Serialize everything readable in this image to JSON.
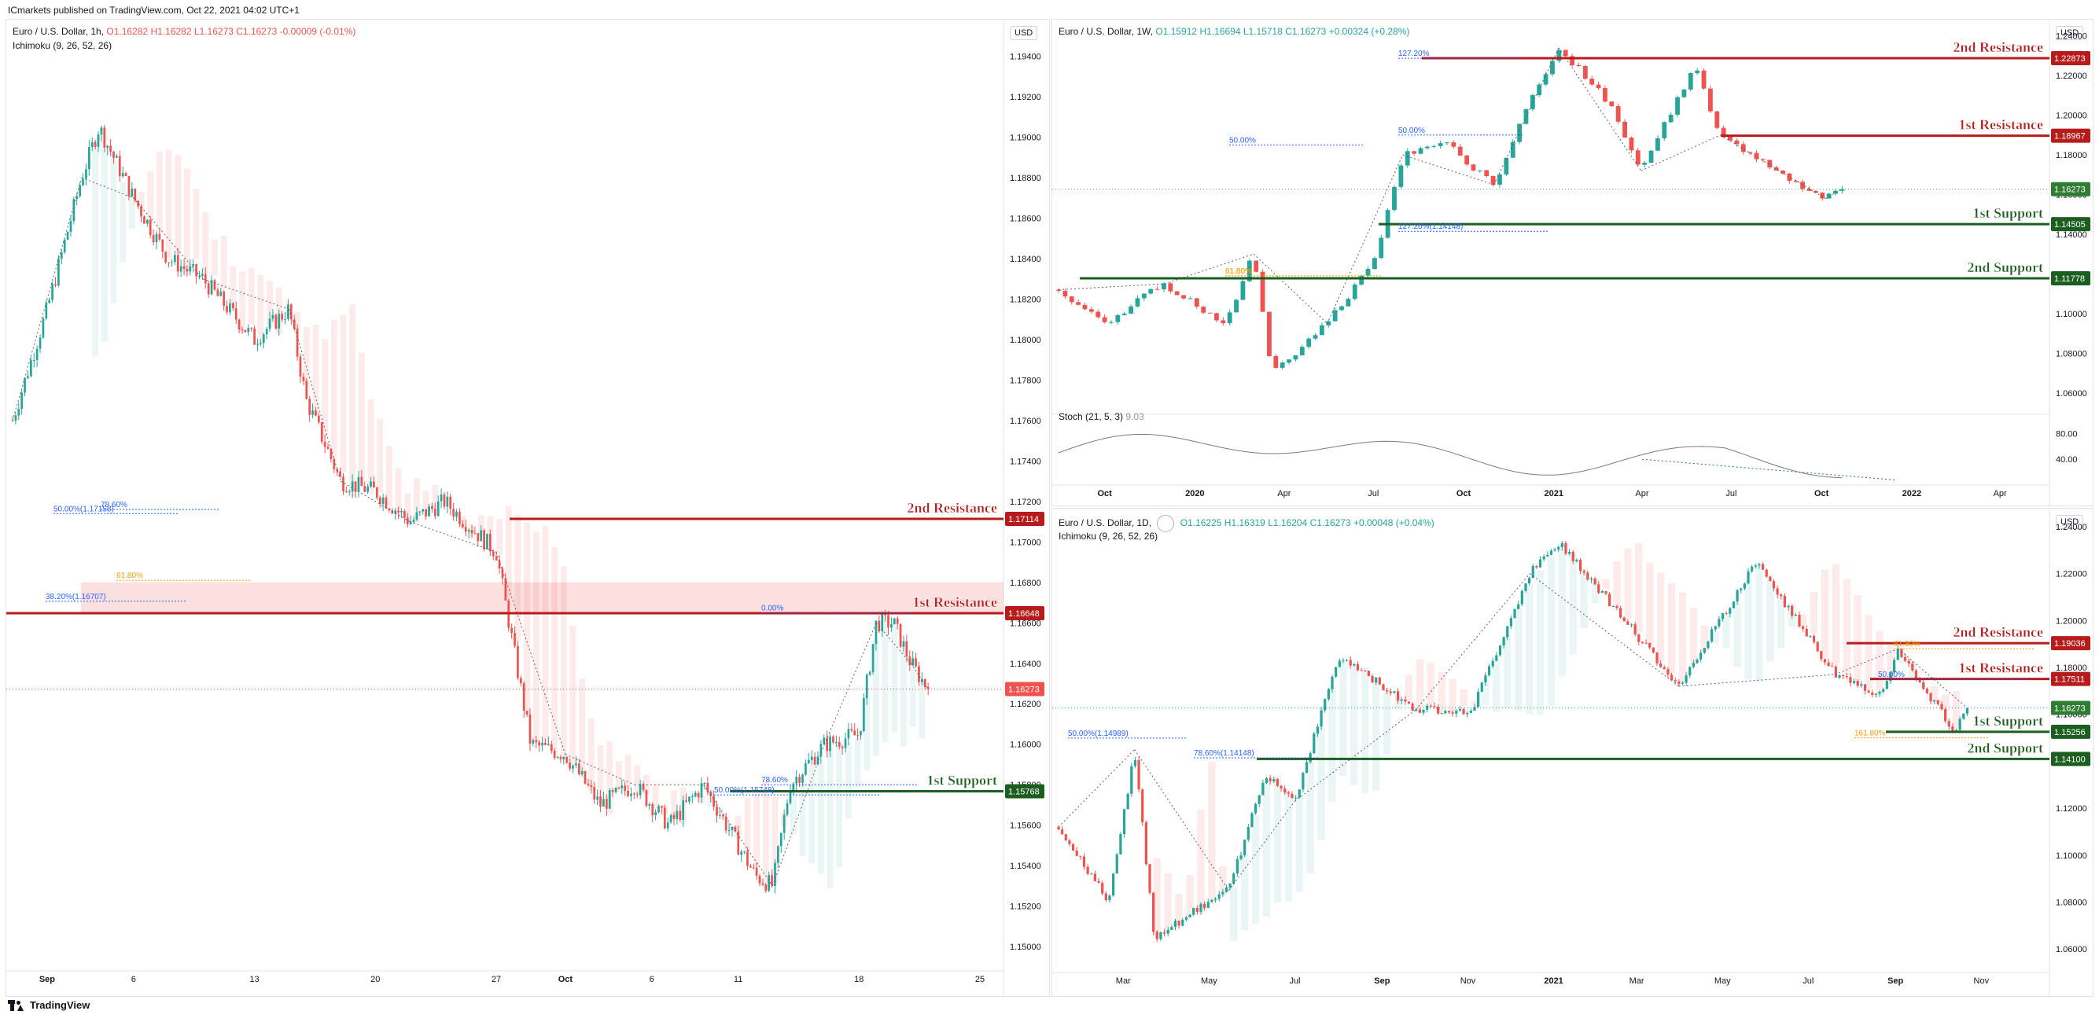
{
  "header": {
    "published": "ICmarkets published on TradingView.com, Oct 22, 2021 04:02 UTC+1"
  },
  "footer": {
    "brand": "TradingView"
  },
  "colors": {
    "up": "#26a69a",
    "down": "#ef5350",
    "resistance": "#b71c1c",
    "support": "#1b5e20",
    "price": "#2e7d32",
    "fib_blue": "#2962ff",
    "fib_orange": "#f59f00"
  },
  "chart_data": [
    {
      "panel": "left",
      "type": "candlestick",
      "title": "Euro / U.S. Dollar, 1h,",
      "ohlc": {
        "o": "O1.16282",
        "h": "H1.16282",
        "l": "L1.16273",
        "c": "C1.16273",
        "chg": "-0.00009 (-0.01%)"
      },
      "indicator": "Ichimoku (9, 26, 52, 26)",
      "currency": "USD",
      "ylim": [
        1.1488,
        1.1955
      ],
      "y_ticks": [
        "1.19400",
        "1.19200",
        "1.19000",
        "1.18800",
        "1.18600",
        "1.18400",
        "1.18200",
        "1.18000",
        "1.17800",
        "1.17600",
        "1.17400",
        "1.17200",
        "1.17000",
        "1.16800",
        "1.16600",
        "1.16400",
        "1.16200",
        "1.16000",
        "1.15800",
        "1.15600",
        "1.15400",
        "1.15200",
        "1.15000"
      ],
      "x_ticks": [
        "Sep",
        "6",
        "13",
        "20",
        "27",
        "Oct",
        "6",
        "11",
        "18",
        "25"
      ],
      "x_tick_dates": [
        "2021-09-01",
        "2021-09-06",
        "2021-09-13",
        "2021-09-20",
        "2021-09-27",
        "2021-10-01",
        "2021-10-06",
        "2021-10-11",
        "2021-10-18",
        "2021-10-25"
      ],
      "xlim": [
        "2021-08-30",
        "2021-10-26"
      ],
      "path": [
        [
          "2021-08-30",
          1.176
        ],
        [
          "2021-09-01",
          1.1815
        ],
        [
          "2021-09-03",
          1.188
        ],
        [
          "2021-09-04",
          1.1905
        ],
        [
          "2021-09-06",
          1.187
        ],
        [
          "2021-09-08",
          1.184
        ],
        [
          "2021-09-10",
          1.183
        ],
        [
          "2021-09-13",
          1.18
        ],
        [
          "2021-09-15",
          1.1815
        ],
        [
          "2021-09-16",
          1.177
        ],
        [
          "2021-09-18",
          1.173
        ],
        [
          "2021-09-20",
          1.1725
        ],
        [
          "2021-09-22",
          1.171
        ],
        [
          "2021-09-24",
          1.172
        ],
        [
          "2021-09-27",
          1.1695
        ],
        [
          "2021-09-29",
          1.16
        ],
        [
          "2021-10-01",
          1.1595
        ],
        [
          "2021-10-03",
          1.157
        ],
        [
          "2021-10-05",
          1.158
        ],
        [
          "2021-10-07",
          1.156
        ],
        [
          "2021-10-09",
          1.158
        ],
        [
          "2021-10-12",
          1.1535
        ],
        [
          "2021-10-13",
          1.153
        ],
        [
          "2021-10-14",
          1.158
        ],
        [
          "2021-10-16",
          1.16
        ],
        [
          "2021-10-18",
          1.1605
        ],
        [
          "2021-10-19",
          1.166
        ],
        [
          "2021-10-20",
          1.166
        ],
        [
          "2021-10-21",
          1.164
        ],
        [
          "2021-10-22",
          1.16273
        ]
      ],
      "levels": [
        {
          "name": "2nd Resistance",
          "price": 1.17114,
          "tag": "1.17114",
          "kind": "resistance"
        },
        {
          "name": "1st Resistance",
          "price": 1.16648,
          "tag": "1.16648",
          "kind": "resistance"
        },
        {
          "name": "1st Support",
          "price": 1.15768,
          "tag": "1.15768",
          "kind": "support"
        }
      ],
      "last_price": {
        "price": 1.16273,
        "tag": "1.16273"
      },
      "fib_labels": [
        "78.60%",
        "50.00%(1.17158)",
        "61.80%",
        "38.20%(1.16707)",
        "0.00%",
        "78.60%",
        "50.00%(1.15748)"
      ],
      "zone": [
        1.1665,
        1.168
      ]
    },
    {
      "panel": "top-right",
      "type": "candlestick",
      "title": "Euro / U.S. Dollar, 1W,",
      "ohlc": {
        "o": "O1.15912",
        "h": "H1.16694",
        "l": "L1.15718",
        "c": "C1.16273",
        "chg": "+0.00324 (+0.28%)"
      },
      "currency": "USD",
      "ylim": [
        1.05,
        1.245
      ],
      "y_ticks": [
        "1.24000",
        "1.22000",
        "1.20000",
        "1.18000",
        "1.16000",
        "1.14000",
        "1.12000",
        "1.10000",
        "1.08000",
        "1.06000"
      ],
      "x_ticks": [
        "Oct",
        "2020",
        "Apr",
        "Jul",
        "Oct",
        "2021",
        "Apr",
        "Jul",
        "Oct",
        "2022",
        "Apr"
      ],
      "x_tick_dates": [
        "2019-10-01",
        "2020-01-01",
        "2020-04-01",
        "2020-07-01",
        "2020-10-01",
        "2021-01-01",
        "2021-04-01",
        "2021-07-01",
        "2021-10-01",
        "2022-01-01",
        "2022-04-01"
      ],
      "xlim": [
        "2019-08-15",
        "2022-05-15"
      ],
      "path": [
        [
          "2019-08-15",
          1.112
        ],
        [
          "2019-10-01",
          1.095
        ],
        [
          "2019-12-01",
          1.115
        ],
        [
          "2020-02-01",
          1.095
        ],
        [
          "2020-03-01",
          1.13
        ],
        [
          "2020-03-20",
          1.07
        ],
        [
          "2020-05-15",
          1.095
        ],
        [
          "2020-07-01",
          1.125
        ],
        [
          "2020-07-31",
          1.18
        ],
        [
          "2020-09-15",
          1.185
        ],
        [
          "2020-11-01",
          1.165
        ],
        [
          "2020-12-01",
          1.2
        ],
        [
          "2021-01-06",
          1.234
        ],
        [
          "2021-03-01",
          1.205
        ],
        [
          "2021-03-31",
          1.172
        ],
        [
          "2021-05-25",
          1.225
        ],
        [
          "2021-06-20",
          1.19
        ],
        [
          "2021-08-20",
          1.17
        ],
        [
          "2021-10-05",
          1.158
        ],
        [
          "2021-10-22",
          1.16273
        ]
      ],
      "levels": [
        {
          "name": "2nd Resistance",
          "price": 1.22873,
          "tag": "1.22873",
          "kind": "resistance"
        },
        {
          "name": "1st Resistance",
          "price": 1.18967,
          "tag": "1.18967",
          "kind": "resistance"
        },
        {
          "name": "1st Support",
          "price": 1.14505,
          "tag": "1.14505",
          "kind": "support"
        },
        {
          "name": "2nd Support",
          "price": 1.11778,
          "tag": "1.11778",
          "kind": "support"
        }
      ],
      "last_price": {
        "price": 1.16273,
        "tag": "1.16273"
      },
      "fib_labels": [
        "127.20%",
        "50.00%",
        "50.00%",
        "61.80%",
        "127.20%(1.14148)",
        "61.80%"
      ],
      "stoch": {
        "label": "Stoch (21, 5, 3)",
        "value": "9.03",
        "ylim": [
          0,
          100
        ],
        "y_ticks": [
          "80.00",
          "40.00"
        ]
      }
    },
    {
      "panel": "bottom-right",
      "type": "candlestick",
      "title": "Euro / U.S. Dollar, 1D,",
      "ohlc": {
        "o": "O1.16225",
        "h": "H1.16319",
        "l": "L1.16204",
        "c": "C1.16273",
        "chg": "+0.00048 (+0.04%)"
      },
      "indicator": "Ichimoku (9, 26, 52, 26)",
      "currency": "USD",
      "ylim": [
        1.05,
        1.245
      ],
      "y_ticks": [
        "1.24000",
        "1.22000",
        "1.20000",
        "1.18000",
        "1.16000",
        "1.14000",
        "1.12000",
        "1.10000",
        "1.08000",
        "1.06000"
      ],
      "x_ticks": [
        "Mar",
        "May",
        "Jul",
        "Sep",
        "Nov",
        "2021",
        "Mar",
        "May",
        "Jul",
        "Sep",
        "Nov"
      ],
      "x_tick_dates": [
        "2020-03-01",
        "2020-05-01",
        "2020-07-01",
        "2020-09-01",
        "2020-11-01",
        "2021-01-01",
        "2021-03-01",
        "2021-05-01",
        "2021-07-01",
        "2021-09-01",
        "2021-11-01"
      ],
      "xlim": [
        "2020-01-15",
        "2021-12-15"
      ],
      "path": [
        [
          "2020-01-15",
          1.112
        ],
        [
          "2020-02-20",
          1.08
        ],
        [
          "2020-03-09",
          1.145
        ],
        [
          "2020-03-23",
          1.065
        ],
        [
          "2020-05-15",
          1.085
        ],
        [
          "2020-06-10",
          1.135
        ],
        [
          "2020-07-01",
          1.123
        ],
        [
          "2020-08-01",
          1.185
        ],
        [
          "2020-09-25",
          1.162
        ],
        [
          "2020-11-04",
          1.162
        ],
        [
          "2020-12-15",
          1.22
        ],
        [
          "2021-01-06",
          1.233
        ],
        [
          "2021-03-31",
          1.172
        ],
        [
          "2021-05-25",
          1.225
        ],
        [
          "2021-07-20",
          1.177
        ],
        [
          "2021-08-20",
          1.167
        ],
        [
          "2021-09-03",
          1.188
        ],
        [
          "2021-10-12",
          1.153
        ],
        [
          "2021-10-22",
          1.16273
        ]
      ],
      "levels": [
        {
          "name": "2nd Resistance",
          "price": 1.19036,
          "tag": "1.19036",
          "kind": "resistance"
        },
        {
          "name": "1st Resistance",
          "price": 1.17511,
          "tag": "1.17511",
          "kind": "resistance"
        },
        {
          "name": "1st Support",
          "price": 1.15256,
          "tag": "1.15256",
          "kind": "support"
        },
        {
          "name": "2nd Support",
          "price": 1.141,
          "tag": "1.14100",
          "kind": "support"
        }
      ],
      "last_price": {
        "price": 1.16273,
        "tag": "1.16273"
      },
      "fib_labels": [
        "50.00%(1.14989)",
        "78.60%(1.14148)",
        "161.80%",
        "61.80%",
        "50.00%"
      ]
    }
  ]
}
